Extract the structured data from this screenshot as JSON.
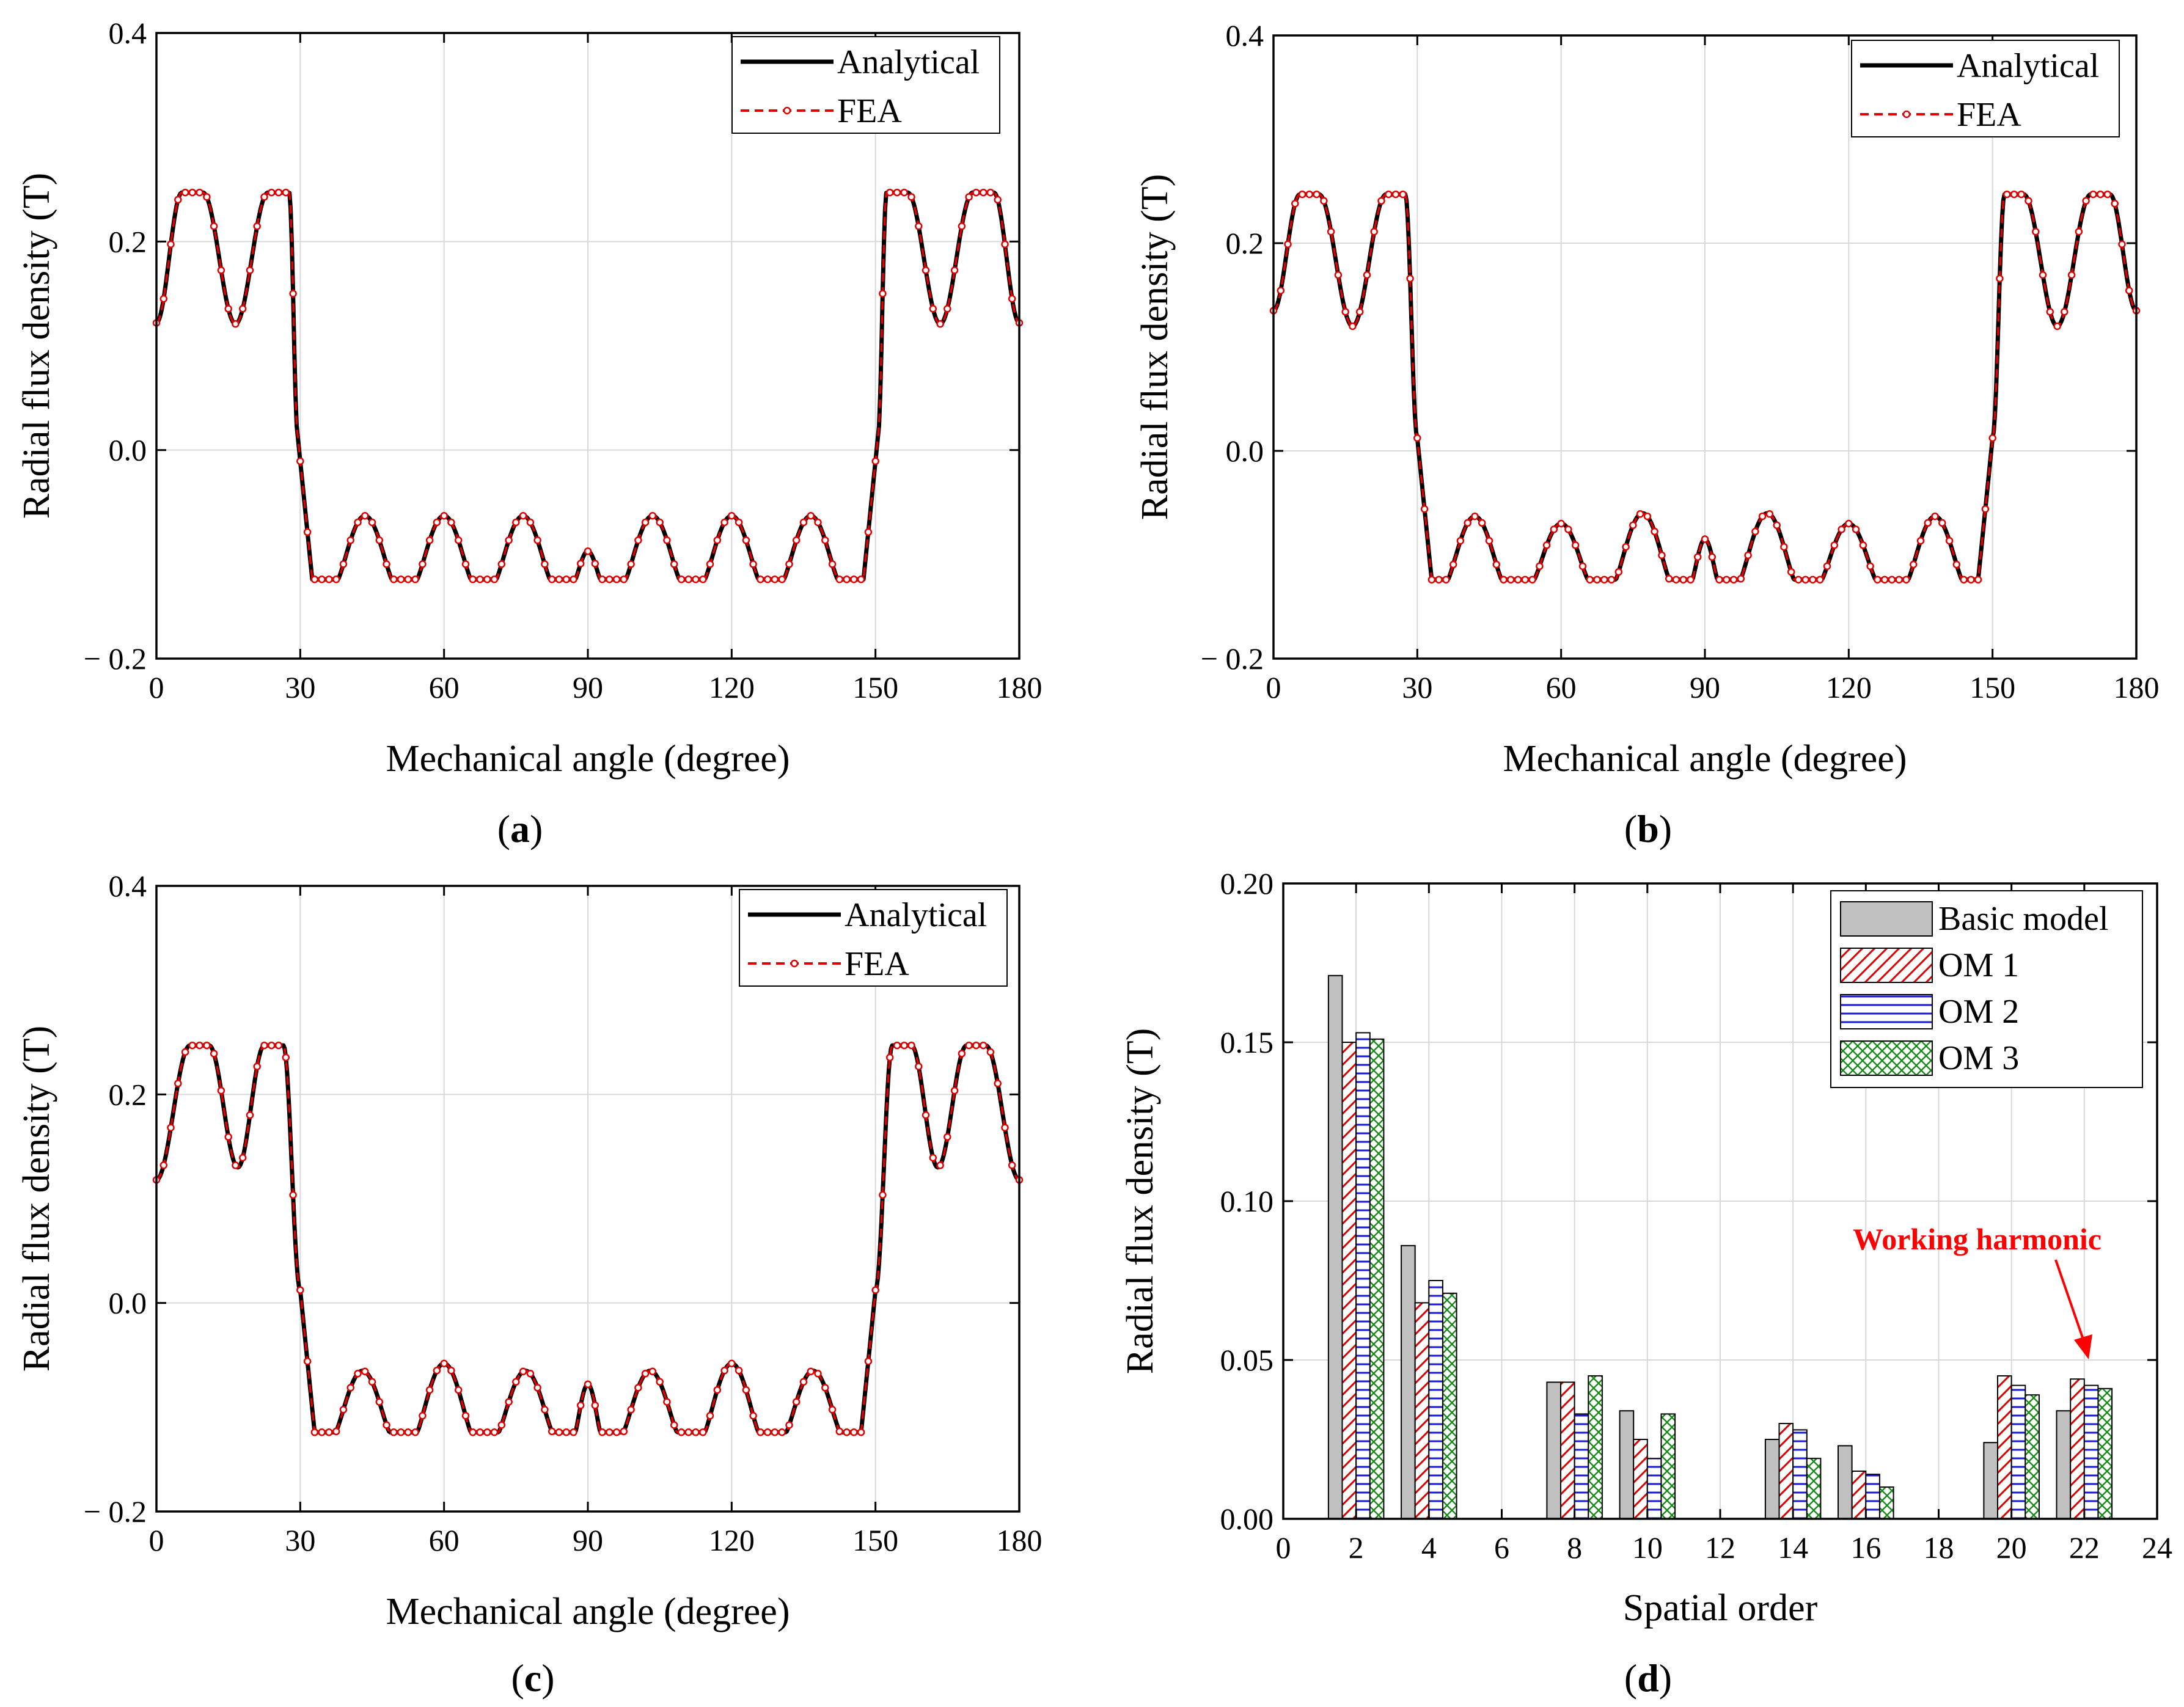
{
  "colors": {
    "analytical": "#000000",
    "fea": "#e00000",
    "bar_basic": "#c0c0c0",
    "om1": "#e00000",
    "om2": "#1a1ad0",
    "om3": "#1a8a1a",
    "grid": "#d8d8d8",
    "annotation": "#ff0000"
  },
  "chart_data": [
    {
      "type": "line",
      "panel": "a",
      "caption_open": "(",
      "caption_letter": "a",
      "caption_close": ")",
      "xlabel": "Mechanical angle (degree)",
      "ylabel": "Radial flux density (T)",
      "xlim": [
        0,
        180
      ],
      "ylim": [
        -0.2,
        0.4
      ],
      "xticks": [
        0,
        30,
        60,
        90,
        120,
        150,
        180
      ],
      "yticks": [
        -0.2,
        0.0,
        0.2,
        0.4
      ],
      "xtick_labels": [
        "0",
        "30",
        "60",
        "90",
        "120",
        "150",
        "180"
      ],
      "ytick_labels": [
        "− 0.2",
        "0.0",
        "0.2",
        "0.4"
      ],
      "grid": true,
      "legend_position": "top-right",
      "series": [
        {
          "name": "Analytical",
          "style": "solid-black"
        },
        {
          "name": "FEA",
          "style": "dashed-red-circles"
        }
      ],
      "waveform": {
        "positive_region_deg": [
          [
            0,
            29.5
          ],
          [
            150.5,
            180
          ]
        ],
        "edge_value": 0.122,
        "plateau": 0.247,
        "plateau_halfwidth_deg": 2.2,
        "plateau_centers_deg": [
          7.5,
          25.5,
          154.5,
          172.5
        ],
        "pos_dips": [
          {
            "x": 16.5,
            "y": 0.121
          },
          {
            "x": 163.5,
            "y": 0.121
          }
        ],
        "negative_floor": -0.124,
        "neg_peaks": [
          {
            "x": 43.5,
            "y": -0.063
          },
          {
            "x": 60,
            "y": -0.063
          },
          {
            "x": 76.5,
            "y": -0.063
          },
          {
            "x": 90,
            "y": -0.097
          },
          {
            "x": 103.5,
            "y": -0.063
          },
          {
            "x": 120,
            "y": -0.063
          },
          {
            "x": 136.5,
            "y": -0.063
          }
        ]
      }
    },
    {
      "type": "line",
      "panel": "b",
      "caption_open": "(",
      "caption_letter": "b",
      "caption_close": ")",
      "xlabel": "Mechanical angle (degree)",
      "ylabel": "Radial flux density (T)",
      "xlim": [
        0,
        180
      ],
      "ylim": [
        -0.2,
        0.4
      ],
      "xticks": [
        0,
        30,
        60,
        90,
        120,
        150,
        180
      ],
      "yticks": [
        -0.2,
        0.0,
        0.2,
        0.4
      ],
      "xtick_labels": [
        "0",
        "30",
        "60",
        "90",
        "120",
        "150",
        "180"
      ],
      "ytick_labels": [
        "− 0.2",
        "0.0",
        "0.2",
        "0.4"
      ],
      "grid": true,
      "legend_position": "top-right",
      "series": [
        {
          "name": "Analytical",
          "style": "solid-black"
        },
        {
          "name": "FEA",
          "style": "dashed-red-circles"
        }
      ],
      "waveform": {
        "positive_region_deg": [
          [
            0,
            30
          ],
          [
            150,
            180
          ]
        ],
        "edge_value": 0.135,
        "plateau": 0.247,
        "plateau_halfwidth_deg": 2.0,
        "plateau_centers_deg": [
          7.5,
          25.5,
          154.5,
          172.5
        ],
        "pos_dips": [
          {
            "x": 16.5,
            "y": 0.12
          },
          {
            "x": 163.5,
            "y": 0.12
          }
        ],
        "negative_floor": -0.124,
        "neg_peaks": [
          {
            "x": 42,
            "y": -0.063
          },
          {
            "x": 60,
            "y": -0.07
          },
          {
            "x": 77,
            "y": -0.06
          },
          {
            "x": 90,
            "y": -0.085
          },
          {
            "x": 103,
            "y": -0.06
          },
          {
            "x": 120,
            "y": -0.07
          },
          {
            "x": 138,
            "y": -0.063
          }
        ]
      }
    },
    {
      "type": "line",
      "panel": "c",
      "caption_open": "(",
      "caption_letter": "c",
      "caption_close": ")",
      "xlabel": "Mechanical angle (degree)",
      "ylabel": "Radial flux density (T)",
      "xlim": [
        0,
        180
      ],
      "ylim": [
        -0.2,
        0.4
      ],
      "xticks": [
        0,
        30,
        60,
        90,
        120,
        150,
        180
      ],
      "yticks": [
        -0.2,
        0.0,
        0.2,
        0.4
      ],
      "xtick_labels": [
        "0",
        "30",
        "60",
        "90",
        "120",
        "150",
        "180"
      ],
      "ytick_labels": [
        "− 0.2",
        "0.0",
        "0.2",
        "0.4"
      ],
      "grid": true,
      "legend_position": "top-right",
      "series": [
        {
          "name": "Analytical",
          "style": "solid-black"
        },
        {
          "name": "FEA",
          "style": "dashed-red-circles"
        }
      ],
      "waveform": {
        "positive_region_deg": [
          [
            0,
            30
          ],
          [
            150,
            180
          ]
        ],
        "edge_value": 0.118,
        "plateau": 0.247,
        "plateau_halfwidth_deg": 2.0,
        "plateau_centers_deg": [
          9,
          24.5,
          155.5,
          171
        ],
        "pos_dips": [
          {
            "x": 17,
            "y": 0.13
          },
          {
            "x": 163,
            "y": 0.13
          }
        ],
        "negative_floor": -0.124,
        "neg_peaks": [
          {
            "x": 43,
            "y": -0.065
          },
          {
            "x": 60,
            "y": -0.058
          },
          {
            "x": 77,
            "y": -0.065
          },
          {
            "x": 90,
            "y": -0.078
          },
          {
            "x": 103,
            "y": -0.065
          },
          {
            "x": 120,
            "y": -0.058
          },
          {
            "x": 137,
            "y": -0.065
          }
        ]
      }
    },
    {
      "type": "bar",
      "panel": "d",
      "caption_open": "(",
      "caption_letter": "d",
      "caption_close": ")",
      "xlabel": "Spatial order",
      "ylabel": "Radial flux density (T)",
      "xlim": [
        0,
        24
      ],
      "ylim": [
        0.0,
        0.2
      ],
      "xticks": [
        0,
        2,
        4,
        6,
        8,
        10,
        12,
        14,
        16,
        18,
        20,
        22,
        24
      ],
      "yticks": [
        0.0,
        0.05,
        0.1,
        0.15,
        0.2
      ],
      "xtick_labels": [
        "0",
        "2",
        "4",
        "6",
        "8",
        "10",
        "12",
        "14",
        "16",
        "18",
        "20",
        "22",
        "24"
      ],
      "ytick_labels": [
        "0.00",
        "0.05",
        "0.10",
        "0.15",
        "0.20"
      ],
      "grid": true,
      "legend_position": "top-right",
      "categories": [
        2,
        4,
        8,
        10,
        14,
        16,
        20,
        22
      ],
      "series": [
        {
          "name": "Basic model",
          "pattern": "solid-gray",
          "values": [
            0.171,
            0.086,
            0.043,
            0.034,
            0.025,
            0.023,
            0.024,
            0.034
          ]
        },
        {
          "name": "OM 1",
          "pattern": "red-diagonal",
          "values": [
            0.15,
            0.068,
            0.043,
            0.025,
            0.03,
            0.015,
            0.045,
            0.044
          ]
        },
        {
          "name": "OM 2",
          "pattern": "blue-horizontal",
          "values": [
            0.153,
            0.075,
            0.033,
            0.019,
            0.028,
            0.014,
            0.042,
            0.042
          ]
        },
        {
          "name": "OM 3",
          "pattern": "green-crosshatch",
          "values": [
            0.151,
            0.071,
            0.045,
            0.033,
            0.019,
            0.01,
            0.039,
            0.041
          ]
        }
      ],
      "annotation": {
        "text": "Working harmonic",
        "points_to": {
          "x": 22,
          "y": 0.05
        }
      }
    }
  ]
}
